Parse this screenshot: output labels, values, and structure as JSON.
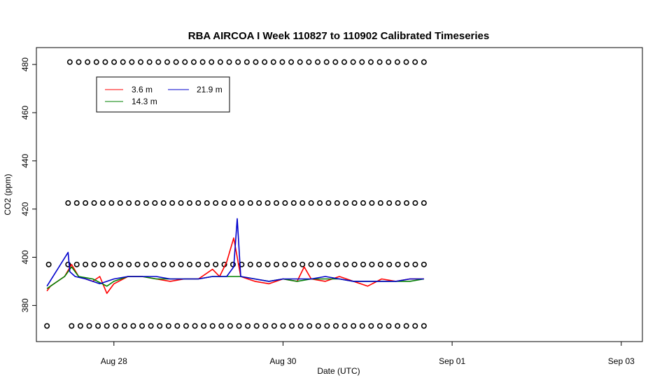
{
  "chart_data": {
    "type": "line",
    "title": "RBA AIRCOA I  Week 110827 to 110902  Calibrated Timeseries",
    "xlabel": "Date (UTC)",
    "ylabel": "CO2 (ppm)",
    "xlim": [
      "2011-08-27T02:00",
      "2011-09-03T06:00"
    ],
    "ylim": [
      365,
      487
    ],
    "x_ticks": [
      {
        "value": "2011-08-28T00:00",
        "label": "Aug 28"
      },
      {
        "value": "2011-08-30T00:00",
        "label": "Aug 30"
      },
      {
        "value": "2011-09-01T00:00",
        "label": "Sep 01"
      },
      {
        "value": "2011-09-03T00:00",
        "label": "Sep 03"
      }
    ],
    "y_ticks": [
      380,
      400,
      420,
      440,
      460,
      480
    ],
    "legend_position": "top-left",
    "colors": {
      "3.6 m": "#ff0000",
      "14.3 m": "#008000",
      "21.9 m": "#0000cc",
      "markers": "#000000"
    },
    "series": [
      {
        "name": "3.6 m",
        "color": "#ff0000",
        "x": [
          "2011-08-27T05:00",
          "2011-08-27T06:00",
          "2011-08-27T08:00",
          "2011-08-27T10:00",
          "2011-08-27T12:00",
          "2011-08-27T14:00",
          "2011-08-27T16:00",
          "2011-08-27T18:00",
          "2011-08-27T20:00",
          "2011-08-27T22:00",
          "2011-08-28T00:00",
          "2011-08-28T04:00",
          "2011-08-28T08:00",
          "2011-08-28T12:00",
          "2011-08-28T16:00",
          "2011-08-28T20:00",
          "2011-08-29T00:00",
          "2011-08-29T04:00",
          "2011-08-29T06:00",
          "2011-08-29T08:00",
          "2011-08-29T10:00",
          "2011-08-29T12:00",
          "2011-08-29T14:00",
          "2011-08-29T16:00",
          "2011-08-29T20:00",
          "2011-08-30T00:00",
          "2011-08-30T04:00",
          "2011-08-30T06:00",
          "2011-08-30T08:00",
          "2011-08-30T12:00",
          "2011-08-30T16:00",
          "2011-08-30T20:00",
          "2011-08-31T00:00",
          "2011-08-31T04:00",
          "2011-08-31T08:00",
          "2011-08-31T12:00",
          "2011-08-31T16:00"
        ],
        "y": [
          386,
          388,
          390,
          392,
          397,
          392,
          391,
          390,
          392,
          385,
          389,
          392,
          392,
          391,
          390,
          391,
          391,
          395,
          392,
          398,
          408,
          392,
          391,
          390,
          389,
          391,
          390,
          396,
          391,
          390,
          392,
          390,
          388,
          391,
          390,
          391,
          391
        ]
      },
      {
        "name": "14.3 m",
        "color": "#008000",
        "x": [
          "2011-08-27T05:00",
          "2011-08-27T08:00",
          "2011-08-27T10:00",
          "2011-08-27T12:00",
          "2011-08-27T14:00",
          "2011-08-27T18:00",
          "2011-08-27T22:00",
          "2011-08-28T00:00",
          "2011-08-28T04:00",
          "2011-08-28T08:00",
          "2011-08-28T12:00",
          "2011-08-28T16:00",
          "2011-08-28T20:00",
          "2011-08-29T00:00",
          "2011-08-29T04:00",
          "2011-08-29T08:00",
          "2011-08-29T12:00",
          "2011-08-29T16:00",
          "2011-08-29T20:00",
          "2011-08-30T00:00",
          "2011-08-30T04:00",
          "2011-08-30T08:00",
          "2011-08-30T12:00",
          "2011-08-30T16:00",
          "2011-08-30T20:00",
          "2011-08-31T00:00",
          "2011-08-31T04:00",
          "2011-08-31T08:00",
          "2011-08-31T12:00",
          "2011-08-31T16:00"
        ],
        "y": [
          387,
          390,
          392,
          396,
          392,
          391,
          388,
          390,
          392,
          392,
          391,
          391,
          391,
          391,
          392,
          392,
          392,
          391,
          390,
          391,
          390,
          391,
          391,
          391,
          390,
          390,
          390,
          390,
          390,
          391
        ]
      },
      {
        "name": "21.9 m",
        "color": "#0000cc",
        "x": [
          "2011-08-27T05:00",
          "2011-08-27T11:00",
          "2011-08-27T11:30",
          "2011-08-27T13:00",
          "2011-08-27T16:00",
          "2011-08-27T20:00",
          "2011-08-28T00:00",
          "2011-08-28T04:00",
          "2011-08-28T08:00",
          "2011-08-28T12:00",
          "2011-08-28T16:00",
          "2011-08-28T20:00",
          "2011-08-29T00:00",
          "2011-08-29T04:00",
          "2011-08-29T08:00",
          "2011-08-29T10:00",
          "2011-08-29T11:00",
          "2011-08-29T12:00",
          "2011-08-29T16:00",
          "2011-08-29T20:00",
          "2011-08-30T00:00",
          "2011-08-30T04:00",
          "2011-08-30T08:00",
          "2011-08-30T12:00",
          "2011-08-30T16:00",
          "2011-08-30T20:00",
          "2011-08-31T00:00",
          "2011-08-31T04:00",
          "2011-08-31T08:00",
          "2011-08-31T12:00",
          "2011-08-31T16:00"
        ],
        "y": [
          388,
          402,
          394,
          392,
          391,
          389,
          391,
          392,
          392,
          392,
          391,
          391,
          391,
          392,
          392,
          396,
          416,
          392,
          391,
          390,
          391,
          391,
          391,
          392,
          391,
          390,
          390,
          390,
          390,
          391,
          391
        ]
      }
    ],
    "marker_rows": [
      {
        "y": 481,
        "x_start": "2011-08-27T11:30",
        "x_end": "2011-08-31T16:00"
      },
      {
        "y": 422.5,
        "x_start": "2011-08-27T11:00",
        "x_end": "2011-08-31T16:00"
      },
      {
        "y": 397,
        "x_start": "2011-08-27T11:00",
        "x_end": "2011-08-31T16:00",
        "extra_x": [
          "2011-08-27T05:30"
        ]
      },
      {
        "y": 371.5,
        "x_start": "2011-08-27T12:00",
        "x_end": "2011-08-31T16:00",
        "extra_x": [
          "2011-08-27T05:00"
        ]
      }
    ]
  }
}
